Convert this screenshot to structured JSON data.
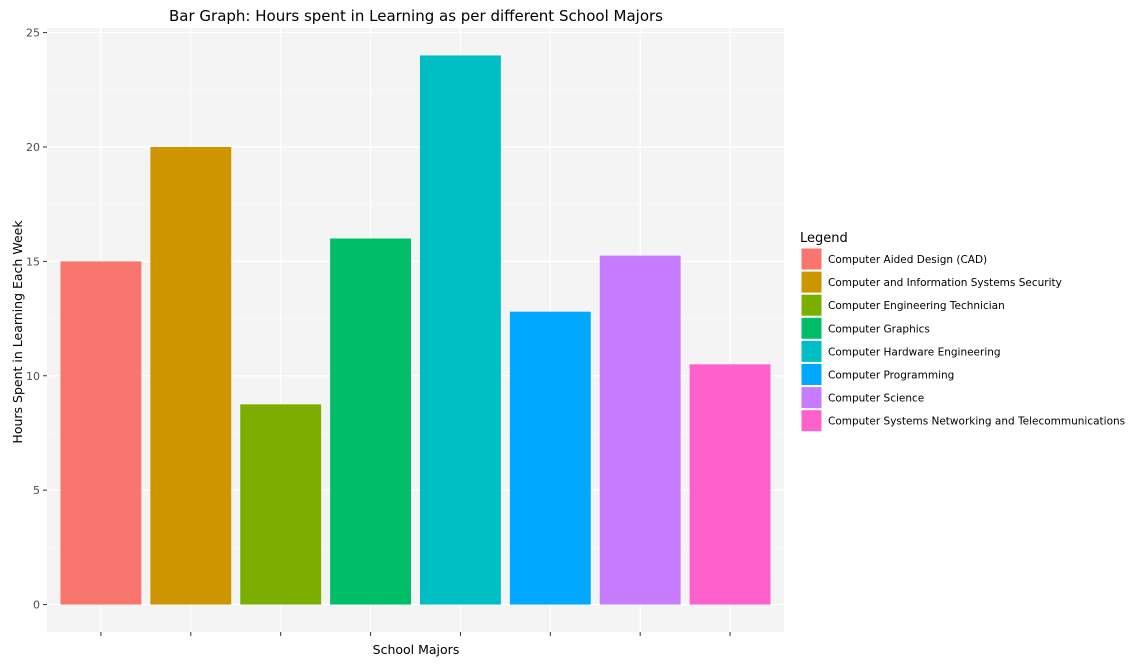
{
  "chart_data": {
    "type": "bar",
    "title": "Bar Graph: Hours spent in Learning as per different School Majors",
    "xlabel": "School Majors",
    "ylabel": "Hours Spent in Learning Each Week",
    "ylim": [
      -1.2,
      25.2
    ],
    "yticks": [
      0,
      5,
      10,
      15,
      20,
      25
    ],
    "grid": true,
    "background": "#f4f4f4",
    "legend": {
      "title": "Legend",
      "placement": "right"
    },
    "categories": [
      "Computer Aided Design (CAD)",
      "Computer and Information Systems Security",
      "Computer Engineering Technician",
      "Computer Graphics",
      "Computer Hardware Engineering",
      "Computer Programming",
      "Computer Science",
      "Computer Systems Networking and Telecommunications"
    ],
    "values": [
      15,
      20,
      8.75,
      16,
      24,
      12.8,
      15.25,
      10.5
    ],
    "colors": [
      "#F8766D",
      "#CD9600",
      "#7CAE00",
      "#00BE67",
      "#00BFC4",
      "#00A9FF",
      "#C77CFF",
      "#FF61CC"
    ]
  }
}
